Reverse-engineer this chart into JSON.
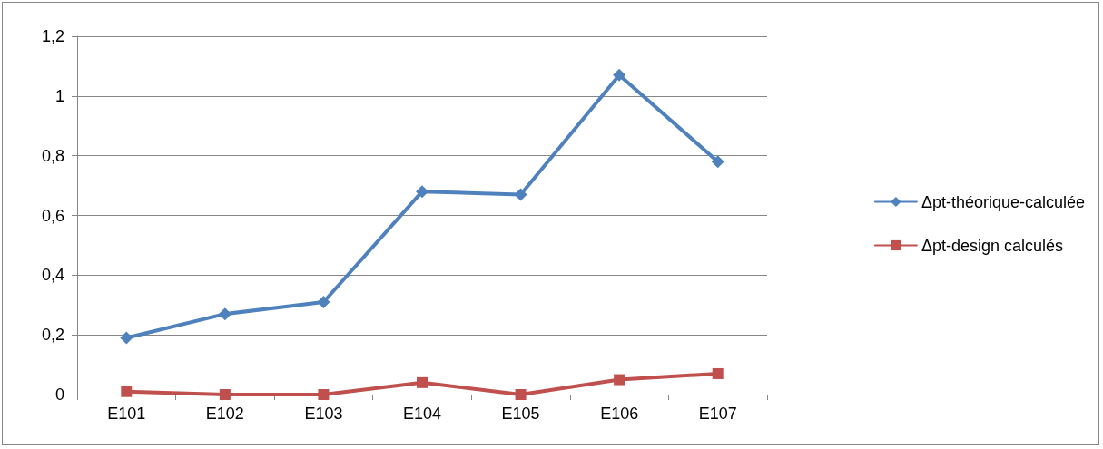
{
  "chart_data": {
    "type": "line",
    "categories": [
      "E101",
      "E102",
      "E103",
      "E104",
      "E105",
      "E106",
      "E107"
    ],
    "series": [
      {
        "name": "Δpt-théorique-calculée",
        "color": "#4f81bd",
        "marker": "diamond",
        "values": [
          0.19,
          0.27,
          0.31,
          0.68,
          0.67,
          1.07,
          0.78
        ]
      },
      {
        "name": "Δpt-design calculés",
        "color": "#c0504d",
        "marker": "square",
        "values": [
          0.01,
          0,
          0,
          0.04,
          0,
          0.05,
          0.07
        ]
      }
    ],
    "ylim": [
      0,
      1.2
    ],
    "yticks": [
      0,
      {
        "value": 0.2,
        "label": "0,2"
      },
      {
        "value": 0.4,
        "label": "0,4"
      },
      {
        "value": 0.6,
        "label": "0,6"
      },
      {
        "value": 0.8,
        "label": "0,8"
      },
      1,
      {
        "value": 1.2,
        "label": "1,2"
      }
    ],
    "grid": "y",
    "legend": "right",
    "line_style": "solid"
  }
}
